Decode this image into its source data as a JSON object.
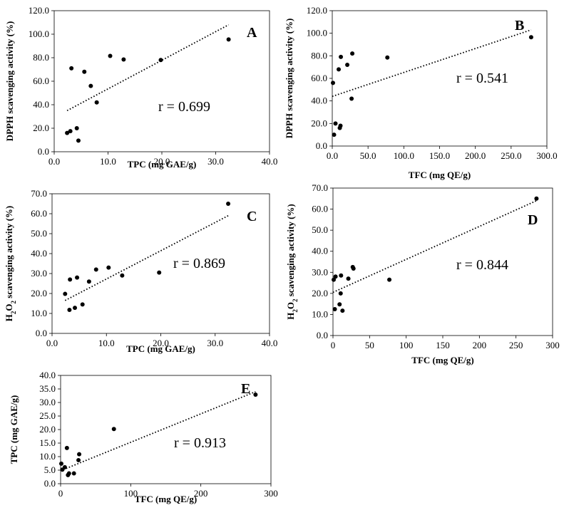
{
  "chart_data": [
    {
      "type": "scatter",
      "panel": "A",
      "xlabel": "TPC  (mg GAE/g)",
      "ylabel": "DPPH scavenging activity (%)",
      "ylabel_parts": [
        "DPPH scavenging activity (%)"
      ],
      "xlim": [
        0,
        40
      ],
      "ylim": [
        0,
        120
      ],
      "xticks": [
        "0.0",
        "10.0",
        "20.0",
        "30.0",
        "40.0"
      ],
      "yticks": [
        "0.0",
        "20.0",
        "40.0",
        "60.0",
        "80.0",
        "100.0",
        "120.0"
      ],
      "x": [
        2.4,
        3.0,
        3.2,
        4.2,
        4.5,
        5.6,
        6.8,
        7.9,
        10.4,
        12.9,
        19.8,
        32.4
      ],
      "y": [
        16.0,
        17.5,
        71.0,
        20.0,
        9.5,
        68.0,
        56.0,
        42.0,
        81.5,
        78.5,
        78.0,
        95.5
      ],
      "trendline": {
        "x": [
          2.4,
          32.4
        ],
        "y": [
          35.0,
          108.0
        ]
      },
      "annotation": "r = 0.699"
    },
    {
      "type": "scatter",
      "panel": "B",
      "xlabel": "TFC (mg QE/g)",
      "ylabel": "DPPH scavenging activity (%)",
      "ylabel_parts": [
        "DPPH scavenging activity (%)"
      ],
      "xlim": [
        0,
        300
      ],
      "ylim": [
        0,
        120
      ],
      "xticks": [
        "0.0",
        "50.0",
        "100.0",
        "150.0",
        "200.0",
        "250.0",
        "300.0"
      ],
      "yticks": [
        "0.0",
        "20.0",
        "40.0",
        "60.0",
        "80.0",
        "100.0",
        "120.0"
      ],
      "x": [
        1.0,
        2.5,
        4.5,
        9.0,
        10.5,
        11.5,
        12.0,
        21.0,
        27.0,
        28.0,
        77.0,
        278.0
      ],
      "y": [
        56.0,
        10.0,
        20.0,
        68.0,
        16.0,
        18.0,
        79.0,
        72.0,
        42.0,
        82.0,
        78.5,
        96.5
      ],
      "trendline": {
        "x": [
          0,
          278
        ],
        "y": [
          44.0,
          103.0
        ]
      },
      "annotation": "r = 0.541"
    },
    {
      "type": "scatter",
      "panel": "C",
      "xlabel": "TPC (mg GAE/g)",
      "ylabel": "H2O2 scavenging activity (%)",
      "ylabel_parts": [
        "H",
        "2",
        "O",
        "2",
        " scavenging activity (%)"
      ],
      "xlim": [
        0,
        40
      ],
      "ylim": [
        0,
        70
      ],
      "xticks": [
        "0.0",
        "10.0",
        "20.0",
        "30.0",
        "40.0"
      ],
      "yticks": [
        "0.0",
        "10.0",
        "20.0",
        "30.0",
        "40.0",
        "50.0",
        "60.0",
        "70.0"
      ],
      "x": [
        2.4,
        3.2,
        3.3,
        4.2,
        4.6,
        5.6,
        6.8,
        8.1,
        10.4,
        12.9,
        19.7,
        32.4
      ],
      "y": [
        19.8,
        11.8,
        27.0,
        12.8,
        28.0,
        14.5,
        26.0,
        32.0,
        33.0,
        29.0,
        30.5,
        65.0
      ],
      "trendline": {
        "x": [
          2.4,
          32.4
        ],
        "y": [
          16.5,
          59.0
        ]
      },
      "annotation": "r = 0.869"
    },
    {
      "type": "scatter",
      "panel": "D",
      "xlabel": "TFC (mg QE/g)",
      "ylabel": "H2O2 scavenging activity (%)",
      "ylabel_parts": [
        "H",
        "2",
        "O",
        "2",
        " scavenging activity (%)"
      ],
      "xlim": [
        0,
        300
      ],
      "ylim": [
        0,
        70
      ],
      "xticks": [
        "0",
        "50",
        "100",
        "150",
        "200",
        "250",
        "300"
      ],
      "yticks": [
        "0.0",
        "10.0",
        "20.0",
        "30.0",
        "40.0",
        "50.0",
        "60.0",
        "70.0"
      ],
      "x": [
        1.0,
        2.5,
        3.5,
        9.0,
        10.5,
        11.0,
        13.0,
        21.0,
        27.0,
        28.0,
        77.0,
        278.0
      ],
      "y": [
        26.5,
        12.5,
        28.0,
        14.8,
        20.0,
        28.5,
        11.8,
        27.0,
        32.5,
        31.8,
        26.5,
        65.0
      ],
      "trendline": {
        "x": [
          0,
          278
        ],
        "y": [
          20.5,
          64.0
        ]
      },
      "annotation": "r = 0.844"
    },
    {
      "type": "scatter",
      "panel": "E",
      "xlabel": "TFC  (mg QE/g)",
      "ylabel": "TPC (mg GAE/g)",
      "ylabel_parts": [
        "TPC (mg GAE/g)"
      ],
      "xlim": [
        0,
        300
      ],
      "ylim": [
        0,
        40
      ],
      "xticks": [
        "0",
        "100",
        "200",
        "300"
      ],
      "yticks": [
        "0.0",
        "5.0",
        "10.0",
        "15.0",
        "20.0",
        "25.0",
        "30.0",
        "35.0",
        "40.0"
      ],
      "x": [
        1.0,
        2.5,
        6.0,
        9.0,
        10.5,
        12.0,
        19.0,
        25.5,
        26.5,
        76.0,
        278.0
      ],
      "y": [
        7.4,
        5.2,
        6.1,
        13.2,
        3.2,
        3.8,
        3.8,
        8.7,
        10.9,
        20.2,
        32.9
      ],
      "trendline": {
        "x": [
          0,
          278
        ],
        "y": [
          4.8,
          34.0
        ]
      },
      "annotation": "r = 0.913"
    }
  ]
}
